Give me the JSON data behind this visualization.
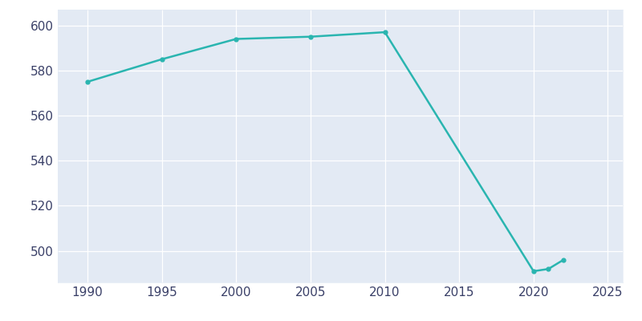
{
  "years": [
    1990,
    1995,
    2000,
    2005,
    2010,
    2020,
    2021,
    2022
  ],
  "population": [
    575,
    585,
    594,
    595,
    597,
    491,
    492,
    496
  ],
  "line_color": "#2ab5b0",
  "marker_style": "o",
  "marker_size": 3.5,
  "line_width": 1.8,
  "background_color": "#ffffff",
  "plot_bg_color": "#e3eaf4",
  "xlim": [
    1988,
    2026
  ],
  "ylim": [
    486,
    607
  ],
  "xticks": [
    1990,
    1995,
    2000,
    2005,
    2010,
    2015,
    2020,
    2025
  ],
  "yticks": [
    500,
    520,
    540,
    560,
    580,
    600
  ],
  "grid_color": "#ffffff",
  "tick_color": "#3a4068",
  "tick_fontsize": 11
}
